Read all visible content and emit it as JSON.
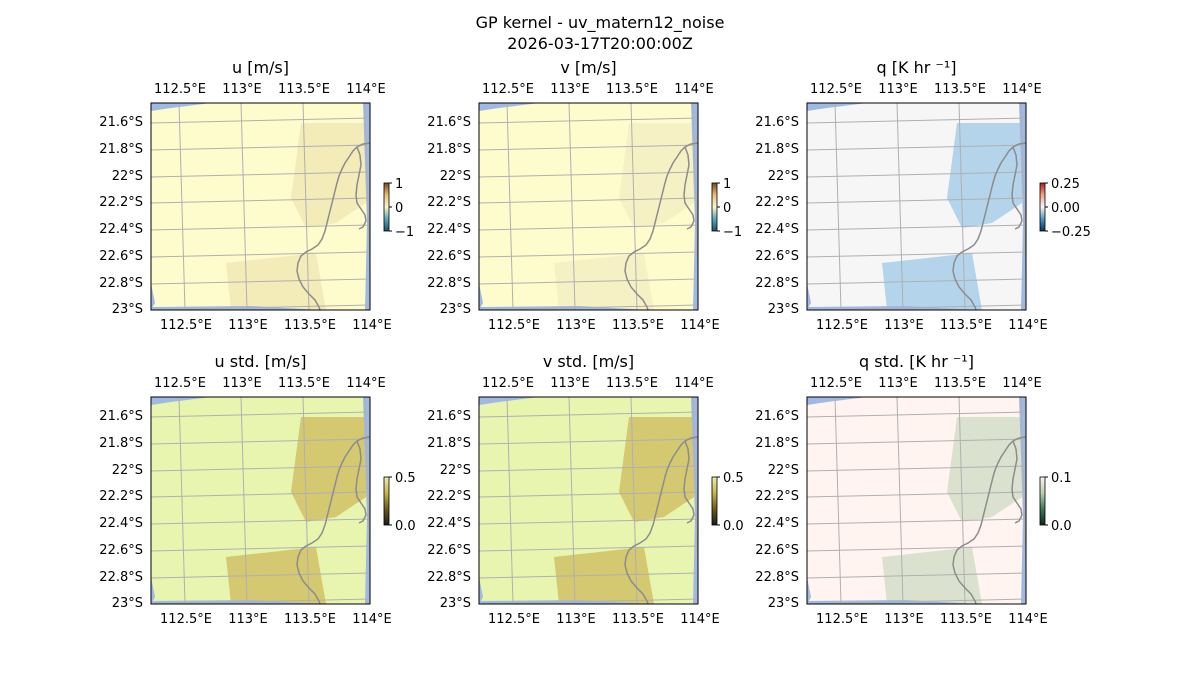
{
  "figure": {
    "title_line1": "GP kernel - uv_matern12_noise",
    "title_line2": "2026-03-17T20:00:00Z"
  },
  "colors": {
    "land": "#a0b8e4",
    "grid": "#b0b0b0",
    "coast": "#8c8c8c"
  },
  "chart_data": [
    {
      "type": "heatmap",
      "title": "u [m/s]",
      "x_ticks": [
        "112.5°E",
        "113°E",
        "113.5°E",
        "114°E"
      ],
      "y_ticks": [
        "21.6°S",
        "21.8°S",
        "22°S",
        "22.2°S",
        "22.4°S",
        "22.6°S",
        "22.8°S",
        "23°S"
      ],
      "colorbar": {
        "ticks": [
          "1",
          "0",
          "−1"
        ],
        "range": [
          -1,
          1
        ],
        "colors": [
          "#1f4e6b",
          "#5aa8b8",
          "#f7f7c8",
          "#e8c07a",
          "#7a4a1a"
        ]
      },
      "background_color": "#fefccc",
      "anomaly_color": "#efe6b2"
    },
    {
      "type": "heatmap",
      "title": "v [m/s]",
      "x_ticks": [
        "112.5°E",
        "113°E",
        "113.5°E",
        "114°E"
      ],
      "y_ticks": [
        "21.6°S",
        "21.8°S",
        "22°S",
        "22.2°S",
        "22.4°S",
        "22.6°S",
        "22.8°S",
        "23°S"
      ],
      "colorbar": {
        "ticks": [
          "1",
          "0",
          "−1"
        ],
        "range": [
          -1,
          1
        ],
        "colors": [
          "#1f4e6b",
          "#5aa8b8",
          "#f7f7c8",
          "#e8c07a",
          "#7a4a1a"
        ]
      },
      "background_color": "#fefccc",
      "anomaly_color": "#f3edc2"
    },
    {
      "type": "heatmap",
      "title": "q [K hr ⁻¹]",
      "x_ticks": [
        "112.5°E",
        "113°E",
        "113.5°E",
        "114°E"
      ],
      "y_ticks": [
        "21.6°S",
        "21.8°S",
        "22°S",
        "22.2°S",
        "22.4°S",
        "22.6°S",
        "22.8°S",
        "23°S"
      ],
      "colorbar": {
        "ticks": [
          "0.25",
          "0.00",
          "−0.25"
        ],
        "range": [
          -0.25,
          0.25
        ],
        "colors": [
          "#08306b",
          "#4a98c9",
          "#f5f5f5",
          "#f4a582",
          "#b2182b"
        ]
      },
      "background_color": "#f6f6f6",
      "anomaly_color": "#9cc8e6"
    },
    {
      "type": "heatmap",
      "title": "u std. [m/s]",
      "x_ticks": [
        "112.5°E",
        "113°E",
        "113.5°E",
        "114°E"
      ],
      "y_ticks": [
        "21.6°S",
        "21.8°S",
        "22°S",
        "22.2°S",
        "22.4°S",
        "22.6°S",
        "22.8°S",
        "23°S"
      ],
      "colorbar": {
        "ticks": [
          "0.5",
          "0.0"
        ],
        "range": [
          0,
          0.5
        ],
        "colors": [
          "#1a1a1a",
          "#6b5a1a",
          "#c8b450",
          "#e8f0b0"
        ]
      },
      "background_color": "#e8f5ae",
      "anomaly_color": "#d3c56e"
    },
    {
      "type": "heatmap",
      "title": "v std. [m/s]",
      "x_ticks": [
        "112.5°E",
        "113°E",
        "113.5°E",
        "114°E"
      ],
      "y_ticks": [
        "21.6°S",
        "21.8°S",
        "22°S",
        "22.2°S",
        "22.4°S",
        "22.6°S",
        "22.8°S",
        "23°S"
      ],
      "colorbar": {
        "ticks": [
          "0.5",
          "0.0"
        ],
        "range": [
          0,
          0.5
        ],
        "colors": [
          "#1a1a1a",
          "#6b5a1a",
          "#c8b450",
          "#e8f0b0"
        ]
      },
      "background_color": "#e8f5ae",
      "anomaly_color": "#d3c56e"
    },
    {
      "type": "heatmap",
      "title": "q std. [K hr ⁻¹]",
      "x_ticks": [
        "112.5°E",
        "113°E",
        "113.5°E",
        "114°E"
      ],
      "y_ticks": [
        "21.6°S",
        "21.8°S",
        "22°S",
        "22.2°S",
        "22.4°S",
        "22.6°S",
        "22.8°S",
        "23°S"
      ],
      "colorbar": {
        "ticks": [
          "0.1",
          "0.0"
        ],
        "range": [
          0,
          0.1
        ],
        "colors": [
          "#0a2a1a",
          "#3a7a5a",
          "#b8d0b0",
          "#fff4f0"
        ]
      },
      "background_color": "#fff4f0",
      "anomaly_color": "#d8e0cc"
    }
  ]
}
